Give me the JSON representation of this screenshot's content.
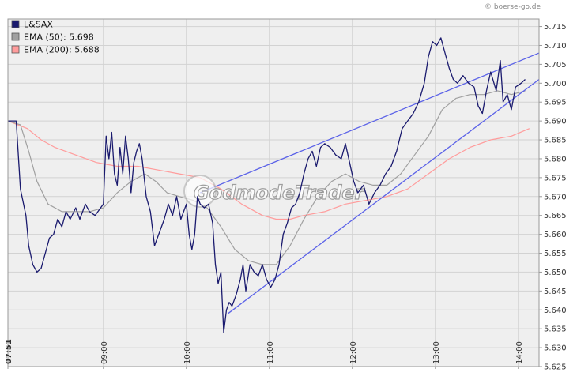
{
  "credit": "© boerse-go.de",
  "watermark": "GodmodeTrader",
  "chart_data": {
    "type": "line",
    "x_start": "07:51",
    "x_tick_labels": [
      "07:51",
      "09:00",
      "10:00",
      "11:00",
      "12:00",
      "13:00",
      "14:00"
    ],
    "xlim": [
      "07:51",
      "14:15"
    ],
    "y_tick_labels": [
      "5.715",
      "5.710",
      "5.705",
      "5.700",
      "5.695",
      "5.690",
      "5.685",
      "5.680",
      "5.675",
      "5.670",
      "5.665",
      "5.660",
      "5.655",
      "5.650",
      "5.645",
      "5.640",
      "5.635",
      "5.630",
      "5.625"
    ],
    "ylim": [
      5.625,
      5.717
    ],
    "grid": true,
    "legend_position": "top-left",
    "legend": [
      {
        "label": "L&SAX",
        "color": "#1a1a6e"
      },
      {
        "label": "EMA (50): 5.698",
        "color": "#a0a0a0"
      },
      {
        "label": "EMA (200): 5.688",
        "color": "#ff9c9c"
      }
    ],
    "series": [
      {
        "name": "L&SAX",
        "color": "#1a1a6e",
        "points": [
          [
            "07:51",
            5.69
          ],
          [
            "07:57",
            5.69
          ],
          [
            "08:00",
            5.672
          ],
          [
            "08:04",
            5.665
          ],
          [
            "08:06",
            5.657
          ],
          [
            "08:09",
            5.652
          ],
          [
            "08:12",
            5.65
          ],
          [
            "08:15",
            5.651
          ],
          [
            "08:18",
            5.655
          ],
          [
            "08:21",
            5.659
          ],
          [
            "08:24",
            5.66
          ],
          [
            "08:27",
            5.664
          ],
          [
            "08:30",
            5.662
          ],
          [
            "08:33",
            5.666
          ],
          [
            "08:36",
            5.664
          ],
          [
            "08:40",
            5.667
          ],
          [
            "08:43",
            5.664
          ],
          [
            "08:47",
            5.668
          ],
          [
            "08:50",
            5.666
          ],
          [
            "08:54",
            5.665
          ],
          [
            "08:58",
            5.667
          ],
          [
            "09:00",
            5.668
          ],
          [
            "09:02",
            5.686
          ],
          [
            "09:04",
            5.68
          ],
          [
            "09:06",
            5.687
          ],
          [
            "09:08",
            5.676
          ],
          [
            "09:10",
            5.673
          ],
          [
            "09:12",
            5.683
          ],
          [
            "09:14",
            5.676
          ],
          [
            "09:16",
            5.686
          ],
          [
            "09:18",
            5.68
          ],
          [
            "09:20",
            5.671
          ],
          [
            "09:22",
            5.679
          ],
          [
            "09:24",
            5.682
          ],
          [
            "09:26",
            5.684
          ],
          [
            "09:28",
            5.68
          ],
          [
            "09:31",
            5.67
          ],
          [
            "09:34",
            5.666
          ],
          [
            "09:37",
            5.657
          ],
          [
            "09:40",
            5.66
          ],
          [
            "09:44",
            5.664
          ],
          [
            "09:47",
            5.668
          ],
          [
            "09:50",
            5.665
          ],
          [
            "09:53",
            5.67
          ],
          [
            "09:56",
            5.664
          ],
          [
            "10:00",
            5.668
          ],
          [
            "10:02",
            5.66
          ],
          [
            "10:04",
            5.656
          ],
          [
            "10:06",
            5.66
          ],
          [
            "10:08",
            5.67
          ],
          [
            "10:10",
            5.668
          ],
          [
            "10:13",
            5.667
          ],
          [
            "10:16",
            5.668
          ],
          [
            "10:19",
            5.663
          ],
          [
            "10:21",
            5.652
          ],
          [
            "10:23",
            5.647
          ],
          [
            "10:25",
            5.65
          ],
          [
            "10:27",
            5.634
          ],
          [
            "10:29",
            5.64
          ],
          [
            "10:31",
            5.642
          ],
          [
            "10:33",
            5.641
          ],
          [
            "10:36",
            5.644
          ],
          [
            "10:39",
            5.648
          ],
          [
            "10:41",
            5.652
          ],
          [
            "10:43",
            5.645
          ],
          [
            "10:46",
            5.652
          ],
          [
            "10:49",
            5.65
          ],
          [
            "10:52",
            5.649
          ],
          [
            "10:55",
            5.652
          ],
          [
            "10:58",
            5.648
          ],
          [
            "11:01",
            5.646
          ],
          [
            "11:04",
            5.648
          ],
          [
            "11:07",
            5.652
          ],
          [
            "11:10",
            5.66
          ],
          [
            "11:13",
            5.663
          ],
          [
            "11:16",
            5.667
          ],
          [
            "11:19",
            5.668
          ],
          [
            "11:22",
            5.671
          ],
          [
            "11:25",
            5.676
          ],
          [
            "11:28",
            5.68
          ],
          [
            "11:31",
            5.682
          ],
          [
            "11:34",
            5.678
          ],
          [
            "11:37",
            5.683
          ],
          [
            "11:40",
            5.684
          ],
          [
            "11:44",
            5.683
          ],
          [
            "11:48",
            5.681
          ],
          [
            "11:52",
            5.68
          ],
          [
            "11:55",
            5.684
          ],
          [
            "11:58",
            5.679
          ],
          [
            "12:01",
            5.674
          ],
          [
            "12:04",
            5.671
          ],
          [
            "12:08",
            5.673
          ],
          [
            "12:12",
            5.668
          ],
          [
            "12:16",
            5.671
          ],
          [
            "12:20",
            5.673
          ],
          [
            "12:24",
            5.676
          ],
          [
            "12:28",
            5.678
          ],
          [
            "12:32",
            5.682
          ],
          [
            "12:36",
            5.688
          ],
          [
            "12:40",
            5.69
          ],
          [
            "12:44",
            5.692
          ],
          [
            "12:48",
            5.695
          ],
          [
            "12:52",
            5.7
          ],
          [
            "12:55",
            5.707
          ],
          [
            "12:58",
            5.711
          ],
          [
            "13:01",
            5.71
          ],
          [
            "13:04",
            5.712
          ],
          [
            "13:07",
            5.708
          ],
          [
            "13:10",
            5.704
          ],
          [
            "13:13",
            5.701
          ],
          [
            "13:16",
            5.7
          ],
          [
            "13:20",
            5.702
          ],
          [
            "13:24",
            5.7
          ],
          [
            "13:28",
            5.699
          ],
          [
            "13:31",
            5.694
          ],
          [
            "13:34",
            5.692
          ],
          [
            "13:37",
            5.698
          ],
          [
            "13:40",
            5.703
          ],
          [
            "13:44",
            5.698
          ],
          [
            "13:47",
            5.706
          ],
          [
            "13:49",
            5.695
          ],
          [
            "13:52",
            5.697
          ],
          [
            "13:55",
            5.693
          ],
          [
            "13:58",
            5.699
          ],
          [
            "14:02",
            5.7
          ],
          [
            "14:05",
            5.701
          ]
        ]
      },
      {
        "name": "EMA (50)",
        "color": "#a0a0a0",
        "points": [
          [
            "07:51",
            5.69
          ],
          [
            "08:00",
            5.689
          ],
          [
            "08:06",
            5.682
          ],
          [
            "08:12",
            5.674
          ],
          [
            "08:20",
            5.668
          ],
          [
            "08:30",
            5.666
          ],
          [
            "08:40",
            5.666
          ],
          [
            "08:50",
            5.666
          ],
          [
            "09:00",
            5.667
          ],
          [
            "09:10",
            5.671
          ],
          [
            "09:20",
            5.674
          ],
          [
            "09:30",
            5.676
          ],
          [
            "09:38",
            5.674
          ],
          [
            "09:46",
            5.671
          ],
          [
            "09:55",
            5.67
          ],
          [
            "10:05",
            5.669
          ],
          [
            "10:15",
            5.667
          ],
          [
            "10:25",
            5.662
          ],
          [
            "10:35",
            5.656
          ],
          [
            "10:45",
            5.653
          ],
          [
            "10:55",
            5.652
          ],
          [
            "11:05",
            5.652
          ],
          [
            "11:15",
            5.657
          ],
          [
            "11:25",
            5.664
          ],
          [
            "11:35",
            5.67
          ],
          [
            "11:45",
            5.674
          ],
          [
            "11:55",
            5.676
          ],
          [
            "12:05",
            5.674
          ],
          [
            "12:15",
            5.673
          ],
          [
            "12:25",
            5.673
          ],
          [
            "12:35",
            5.676
          ],
          [
            "12:45",
            5.681
          ],
          [
            "12:55",
            5.686
          ],
          [
            "13:05",
            5.693
          ],
          [
            "13:15",
            5.696
          ],
          [
            "13:25",
            5.697
          ],
          [
            "13:35",
            5.697
          ],
          [
            "13:45",
            5.698
          ],
          [
            "13:55",
            5.697
          ],
          [
            "14:05",
            5.698
          ]
        ]
      },
      {
        "name": "EMA (200)",
        "color": "#ff9c9c",
        "points": [
          [
            "07:51",
            5.69
          ],
          [
            "08:05",
            5.688
          ],
          [
            "08:15",
            5.685
          ],
          [
            "08:25",
            5.683
          ],
          [
            "08:40",
            5.681
          ],
          [
            "08:55",
            5.679
          ],
          [
            "09:10",
            5.678
          ],
          [
            "09:25",
            5.678
          ],
          [
            "09:40",
            5.677
          ],
          [
            "09:55",
            5.676
          ],
          [
            "10:10",
            5.675
          ],
          [
            "10:25",
            5.672
          ],
          [
            "10:40",
            5.668
          ],
          [
            "10:55",
            5.665
          ],
          [
            "11:05",
            5.664
          ],
          [
            "11:15",
            5.664
          ],
          [
            "11:25",
            5.665
          ],
          [
            "11:40",
            5.666
          ],
          [
            "11:55",
            5.668
          ],
          [
            "12:10",
            5.669
          ],
          [
            "12:25",
            5.67
          ],
          [
            "12:40",
            5.672
          ],
          [
            "12:55",
            5.676
          ],
          [
            "13:10",
            5.68
          ],
          [
            "13:25",
            5.683
          ],
          [
            "13:40",
            5.685
          ],
          [
            "13:55",
            5.686
          ],
          [
            "14:08",
            5.688
          ]
        ]
      }
    ],
    "trendlines": [
      {
        "color": "#5b62e8",
        "from": [
          "10:10",
          5.671
        ],
        "to": [
          "14:15",
          5.708
        ]
      },
      {
        "color": "#5b62e8",
        "from": [
          "10:30",
          5.639
        ],
        "to": [
          "14:15",
          5.701
        ]
      }
    ]
  }
}
